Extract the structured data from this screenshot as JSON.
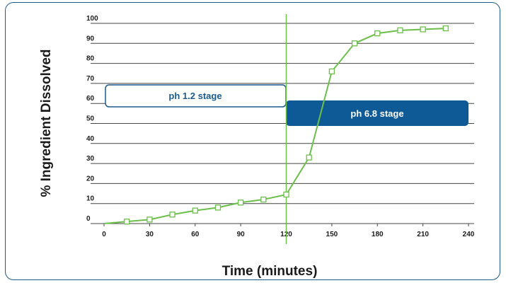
{
  "chart_data": {
    "type": "line",
    "title": "",
    "xlabel": "Time (minutes)",
    "ylabel": "% Ingredient Dissolved",
    "xlim": [
      0,
      240
    ],
    "ylim": [
      0,
      100
    ],
    "x_ticks": [
      "0",
      "30",
      "60",
      "90",
      "120",
      "150",
      "180",
      "210",
      "240"
    ],
    "y_ticks": [
      "0",
      "10",
      "20",
      "30",
      "40",
      "50",
      "60",
      "70",
      "80",
      "90",
      "100"
    ],
    "grid": true,
    "series": [
      {
        "x": [
          0,
          15,
          30,
          45,
          60,
          75,
          90,
          105,
          120,
          135,
          150,
          165,
          180,
          195,
          210,
          225
        ],
        "y": [
          0,
          1,
          2,
          4.5,
          6.5,
          8,
          10.5,
          12,
          14.5,
          33,
          76,
          90,
          95,
          96.5,
          97,
          97.5
        ]
      }
    ],
    "stage_divider_x": 120,
    "annotations": [
      {
        "label": "ph 1.2 stage",
        "style": "outline"
      },
      {
        "label": "ph 6.8 stage",
        "style": "filled"
      }
    ],
    "colors": {
      "line": "#6cbf4a",
      "divider": "#6cbf4a",
      "grid": "#444444",
      "stage_outline": "#1c5a8e",
      "stage_fill": "#0d5a96",
      "frame": "#1c5a8e"
    }
  }
}
